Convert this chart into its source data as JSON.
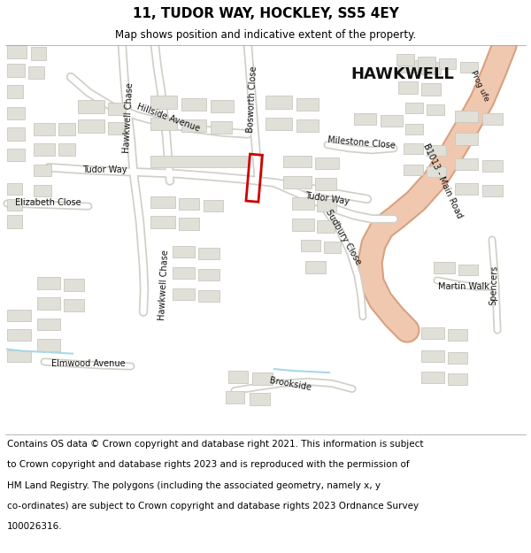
{
  "title": "11, TUDOR WAY, HOCKLEY, SS5 4EY",
  "subtitle": "Map shows position and indicative extent of the property.",
  "footer_lines": [
    "Contains OS data © Crown copyright and database right 2021. This information is subject",
    "to Crown copyright and database rights 2023 and is reproduced with the permission of",
    "HM Land Registry. The polygons (including the associated geometry, namely x, y",
    "co-ordinates) are subject to Crown copyright and database rights 2023 Ordnance Survey",
    "100026316."
  ],
  "title_fontsize": 11,
  "subtitle_fontsize": 8.5,
  "footer_fontsize": 7.5,
  "map_bg": "#f2f2ee",
  "road_fill": "#f0c8b0",
  "road_stroke": "#d9a080",
  "building_fill": "#e0e0d8",
  "building_stroke": "#c8c8c0",
  "street_fill": "#ffffff",
  "street_stroke": "#d0d0c8",
  "property_stroke": "#cc0000",
  "water_color": "#a8d8e8",
  "hawkwell_fontsize": 13
}
